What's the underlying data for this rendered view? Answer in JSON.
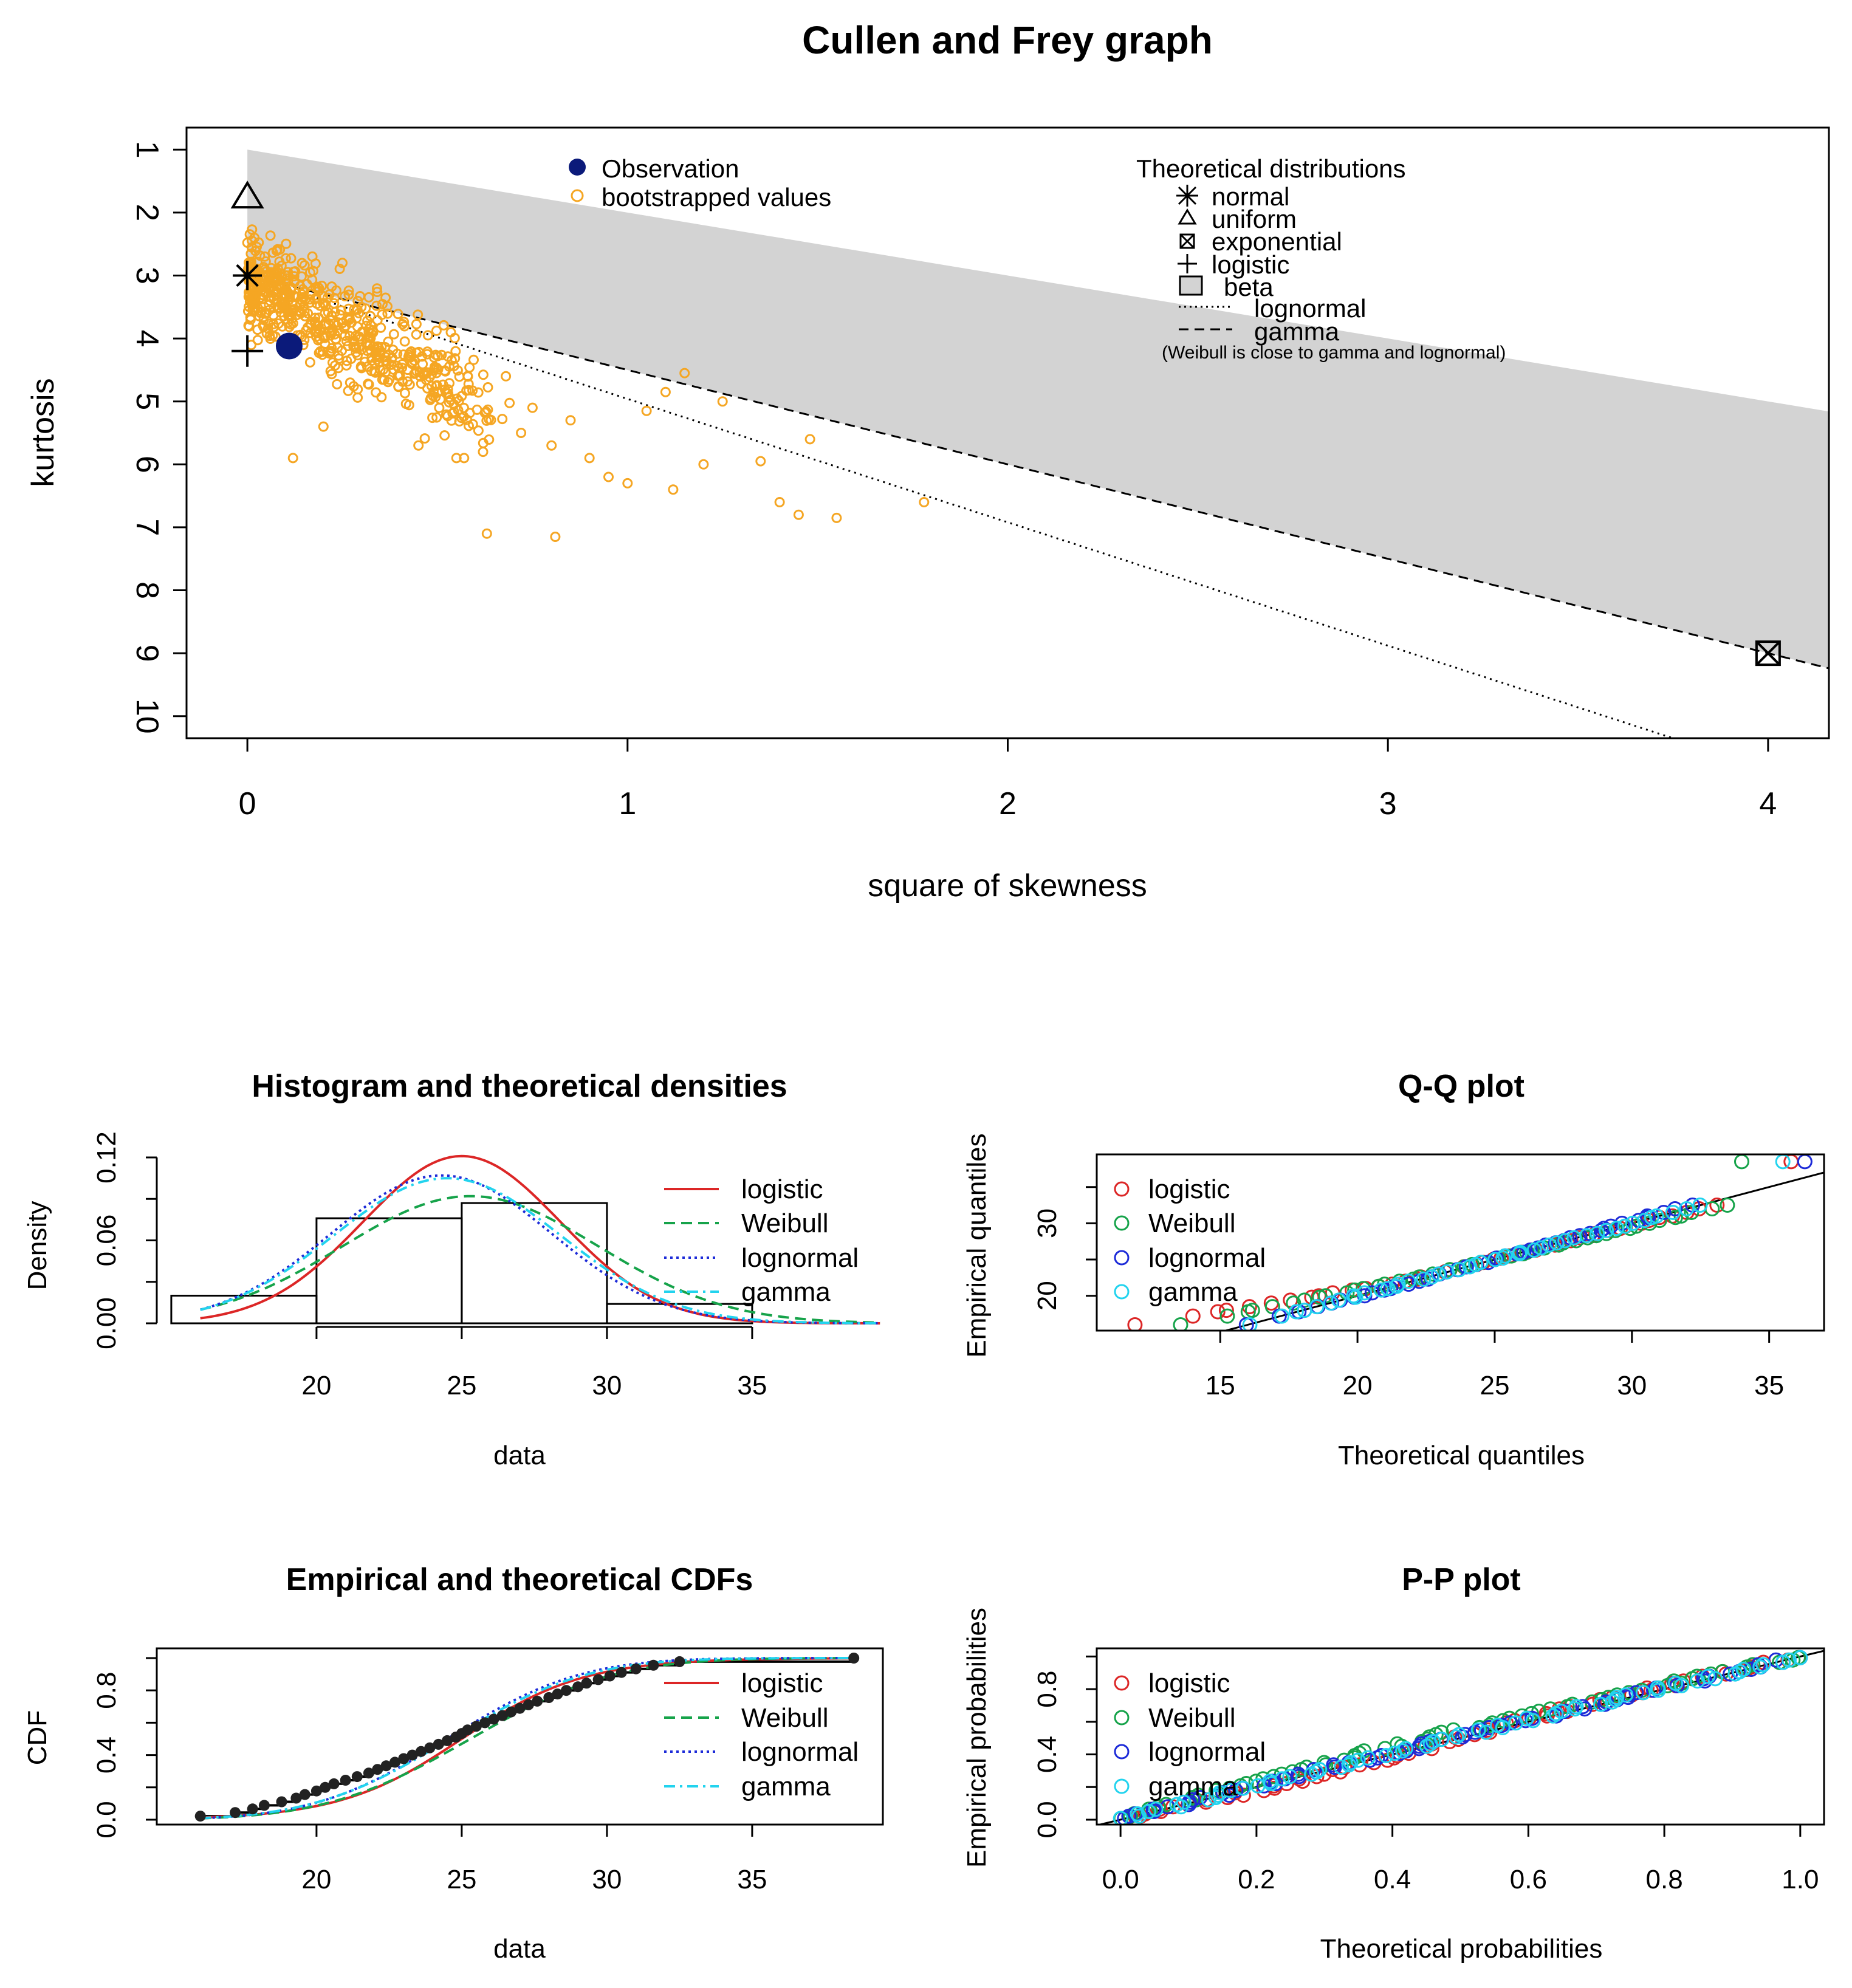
{
  "chart_data": [
    {
      "id": "cf",
      "type": "scatter",
      "title": "Cullen and Frey graph",
      "xlabel": "square of skewness",
      "ylabel": "kurtosis",
      "xlim": [
        -0.16,
        4.16
      ],
      "ylim": [
        10.35,
        0.65
      ],
      "y_reversed": true,
      "x_ticks": [
        "0",
        "1",
        "2",
        "3",
        "4"
      ],
      "y_ticks": [
        "1",
        "2",
        "3",
        "4",
        "5",
        "6",
        "7",
        "8",
        "9",
        "10"
      ],
      "legend_observation": [
        "Observation",
        "bootstrapped values"
      ],
      "legend_theory_title": "Theoretical distributions",
      "legend_theory": [
        "normal",
        "uniform",
        "exponential",
        "logistic",
        "beta",
        "lognormal",
        "gamma"
      ],
      "legend_note": "(Weibull is close to gamma and lognormal)",
      "observation": {
        "x": 0.11,
        "y": 4.12
      },
      "points_normal": {
        "x": 0,
        "y": 3
      },
      "points_uniform": {
        "x": 0,
        "y": 1.8
      },
      "points_exponential": {
        "x": 4,
        "y": 9
      },
      "points_logistic": {
        "x": 0,
        "y": 4.2
      },
      "beta_region": {
        "upper": [
          [
            0,
            1
          ],
          [
            4.16,
            5.16
          ]
        ],
        "lower": [
          [
            0,
            3
          ],
          [
            4.16,
            9.24
          ]
        ]
      },
      "gamma_line": [
        [
          0,
          3
        ],
        [
          4.16,
          9.24
        ]
      ],
      "lognormal_line": [
        [
          0,
          3
        ],
        [
          3.75,
          10.35
        ]
      ],
      "bootstrap": [
        [
          0.81,
          7.15
        ],
        [
          0.63,
          7.1
        ],
        [
          1.78,
          6.6
        ],
        [
          1.55,
          6.85
        ],
        [
          1.45,
          6.8
        ],
        [
          1.4,
          6.6
        ],
        [
          1.48,
          5.6
        ],
        [
          1.35,
          5.95
        ],
        [
          1.2,
          6.0
        ],
        [
          1.0,
          6.3
        ],
        [
          1.12,
          6.4
        ],
        [
          0.95,
          6.2
        ],
        [
          1.15,
          4.55
        ],
        [
          1.1,
          4.85
        ],
        [
          1.25,
          5.0
        ],
        [
          1.05,
          5.15
        ],
        [
          0.9,
          5.9
        ],
        [
          0.8,
          5.7
        ],
        [
          0.72,
          5.5
        ],
        [
          0.62,
          5.8
        ],
        [
          0.55,
          5.9
        ],
        [
          0.68,
          4.6
        ],
        [
          0.75,
          5.1
        ],
        [
          0.85,
          5.3
        ],
        [
          0.35,
          4.5
        ],
        [
          0.45,
          5.7
        ],
        [
          0.2,
          5.4
        ],
        [
          0.12,
          5.9
        ],
        [
          0.3,
          3.5
        ],
        [
          0.25,
          2.8
        ]
      ]
    },
    {
      "id": "hist",
      "type": "bar",
      "title": "Histogram and theoretical densities",
      "xlabel": "data",
      "ylabel": "Density",
      "xlim": [
        14.5,
        39.5
      ],
      "ylim": [
        0,
        0.12
      ],
      "x_ticks": [
        "20",
        "25",
        "30",
        "35"
      ],
      "y_ticks": [
        "0.00",
        "0.06",
        "0.12"
      ],
      "bins": [
        [
          15,
          20
        ],
        [
          20,
          25
        ],
        [
          25,
          30
        ],
        [
          30,
          35
        ]
      ],
      "values": [
        0.02,
        0.076,
        0.087,
        0.014
      ],
      "series": [
        {
          "name": "logistic",
          "color": "#dc2626",
          "dash": "",
          "mean": 25.0,
          "sd": 3.4,
          "peak": 0.121
        },
        {
          "name": "Weibull",
          "color": "#16a34a",
          "dash": "18,10",
          "mean": 25.3,
          "sd": 4.4,
          "peak": 0.092
        },
        {
          "name": "lognormal",
          "color": "#1d2bd8",
          "dash": "4,6",
          "mean": 24.3,
          "sd": 3.8,
          "peak": 0.107
        },
        {
          "name": "gamma",
          "color": "#22d3ee",
          "dash": "18,8,4,8",
          "mean": 24.5,
          "sd": 3.9,
          "peak": 0.105
        }
      ]
    },
    {
      "id": "qq",
      "type": "scatter",
      "title": "Q-Q plot",
      "xlabel": "Theoretical quantiles",
      "ylabel": "Empirical quantiles",
      "xlim": [
        10.5,
        37
      ],
      "ylim": [
        15.2,
        39.5
      ],
      "x_ticks": [
        "15",
        "20",
        "25",
        "30",
        "35"
      ],
      "y_ticks": [
        "20",
        "30"
      ],
      "series": [
        {
          "name": "logistic",
          "color": "#dc2626"
        },
        {
          "name": "Weibull",
          "color": "#16a34a"
        },
        {
          "name": "lognormal",
          "color": "#1d2bd8"
        },
        {
          "name": "gamma",
          "color": "#22d3ee"
        }
      ]
    },
    {
      "id": "cdf",
      "type": "line",
      "title": "Empirical and theoretical CDFs",
      "xlabel": "data",
      "ylabel": "CDF",
      "xlim": [
        14.5,
        39.5
      ],
      "ylim": [
        -0.03,
        1.06
      ],
      "x_ticks": [
        "20",
        "25",
        "30",
        "35"
      ],
      "y_ticks": [
        "0.0",
        "0.4",
        "0.8"
      ],
      "series": [
        {
          "name": "logistic",
          "color": "#dc2626"
        },
        {
          "name": "Weibull",
          "color": "#16a34a"
        },
        {
          "name": "lognormal",
          "color": "#1d2bd8"
        },
        {
          "name": "gamma",
          "color": "#22d3ee"
        }
      ]
    },
    {
      "id": "pp",
      "type": "scatter",
      "title": "P-P plot",
      "xlabel": "Theoretical probabilities",
      "ylabel": "Empirical probabilities",
      "xlim": [
        -0.035,
        1.035
      ],
      "ylim": [
        -0.03,
        1.05
      ],
      "x_ticks": [
        "0.0",
        "0.2",
        "0.4",
        "0.6",
        "0.8",
        "1.0"
      ],
      "y_ticks": [
        "0.0",
        "0.4",
        "0.8"
      ],
      "series": [
        {
          "name": "logistic",
          "color": "#dc2626"
        },
        {
          "name": "Weibull",
          "color": "#16a34a"
        },
        {
          "name": "lognormal",
          "color": "#1d2bd8"
        },
        {
          "name": "gamma",
          "color": "#22d3ee"
        }
      ]
    }
  ]
}
